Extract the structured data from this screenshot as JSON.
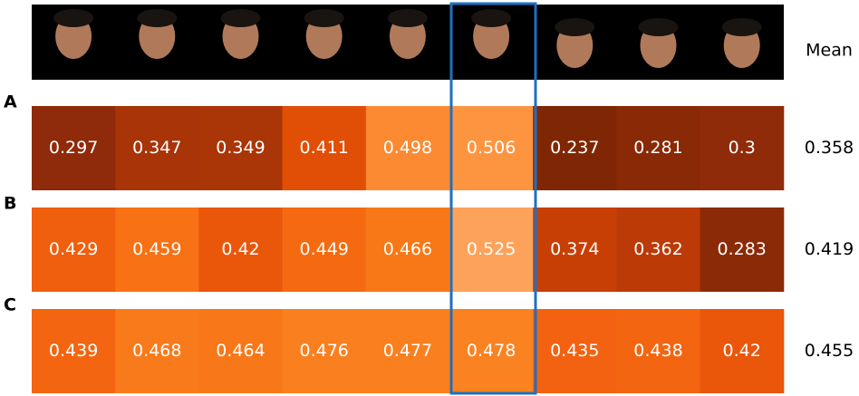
{
  "mean_label": "Mean",
  "rows": [
    {
      "label": "A",
      "values": [
        0.297,
        0.347,
        0.349,
        0.411,
        0.498,
        0.506,
        0.237,
        0.281,
        0.3
      ],
      "mean": 0.358,
      "colors": [
        "#8f2a0a",
        "#a83408",
        "#aa3507",
        "#e04f05",
        "#fb8a32",
        "#fd9540",
        "#7f2704",
        "#8a2906",
        "#902b09"
      ]
    },
    {
      "label": "B",
      "values": [
        0.429,
        0.459,
        0.42,
        0.449,
        0.466,
        0.525,
        0.374,
        0.362,
        0.283
      ],
      "mean": 0.419,
      "colors": [
        "#f05f0d",
        "#f87114",
        "#ea560a",
        "#f56a10",
        "#f87817",
        "#fda25a",
        "#c83f05",
        "#bc3a06",
        "#8b2a07"
      ]
    },
    {
      "label": "C",
      "values": [
        0.439,
        0.468,
        0.464,
        0.476,
        0.477,
        0.478,
        0.435,
        0.438,
        0.42
      ],
      "mean": 0.455,
      "colors": [
        "#f36510",
        "#f97a1a",
        "#f87718",
        "#fa801f",
        "#fa801f",
        "#fb8220",
        "#f26210",
        "#f36510",
        "#ea560a"
      ]
    }
  ]
}
